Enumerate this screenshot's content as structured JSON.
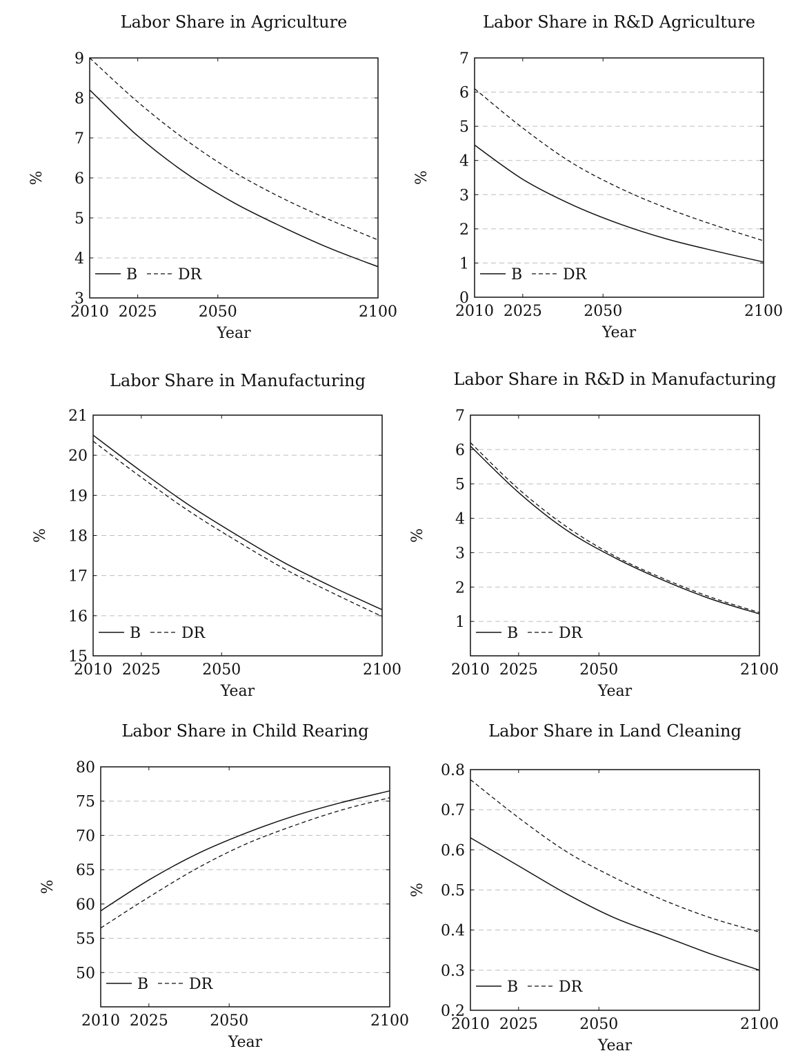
{
  "chart_data": [
    {
      "type": "line",
      "title": "Labor Share in Agriculture",
      "xlabel": "Year",
      "ylabel": "%",
      "xlim": [
        2010,
        2100
      ],
      "ylim": [
        3,
        9
      ],
      "xticks": [
        2010,
        2025,
        2050,
        2100
      ],
      "yticks": [
        3,
        4,
        5,
        6,
        7,
        8,
        9
      ],
      "grid": true,
      "legend_position": "bottom-left",
      "x": [
        2010,
        2025,
        2040,
        2055,
        2070,
        2085,
        2100
      ],
      "series": [
        {
          "name": "B",
          "style": "solid",
          "values": [
            8.2,
            7.05,
            6.12,
            5.38,
            4.78,
            4.24,
            3.78
          ]
        },
        {
          "name": "DR",
          "style": "dashed",
          "values": [
            9.0,
            7.9,
            6.95,
            6.15,
            5.5,
            4.95,
            4.45
          ]
        }
      ]
    },
    {
      "type": "line",
      "title": "Labor Share in R&D Agriculture",
      "xlabel": "Year",
      "ylabel": "%",
      "xlim": [
        2010,
        2100
      ],
      "ylim": [
        0,
        7
      ],
      "xticks": [
        2010,
        2025,
        2050,
        2100
      ],
      "yticks": [
        0,
        1,
        2,
        3,
        4,
        5,
        6,
        7
      ],
      "grid": true,
      "legend_position": "bottom-left",
      "x": [
        2010,
        2025,
        2040,
        2055,
        2070,
        2085,
        2100
      ],
      "series": [
        {
          "name": "B",
          "style": "solid",
          "values": [
            4.45,
            3.45,
            2.72,
            2.15,
            1.7,
            1.35,
            1.03
          ]
        },
        {
          "name": "DR",
          "style": "dashed",
          "values": [
            6.1,
            4.95,
            3.95,
            3.2,
            2.6,
            2.1,
            1.65
          ]
        }
      ]
    },
    {
      "type": "line",
      "title": "Labor Share in Manufacturing",
      "xlabel": "Year",
      "ylabel": "%",
      "xlim": [
        2010,
        2100
      ],
      "ylim": [
        15,
        21
      ],
      "xticks": [
        2010,
        2025,
        2050,
        2100
      ],
      "yticks": [
        15,
        16,
        17,
        18,
        19,
        20,
        21
      ],
      "grid": true,
      "legend_position": "bottom-left",
      "x": [
        2010,
        2025,
        2040,
        2055,
        2070,
        2085,
        2100
      ],
      "series": [
        {
          "name": "B",
          "style": "solid",
          "values": [
            20.5,
            19.6,
            18.75,
            18.0,
            17.3,
            16.7,
            16.15
          ]
        },
        {
          "name": "DR",
          "style": "dashed",
          "values": [
            20.35,
            19.45,
            18.6,
            17.85,
            17.15,
            16.55,
            15.98
          ]
        }
      ]
    },
    {
      "type": "line",
      "title": "Labor Share in R&D in Manufacturing",
      "xlabel": "Year",
      "ylabel": "%",
      "xlim": [
        2010,
        2100
      ],
      "ylim": [
        0,
        7
      ],
      "xticks": [
        2010,
        2025,
        2050,
        2100
      ],
      "yticks": [
        1,
        2,
        3,
        4,
        5,
        6,
        7
      ],
      "grid": true,
      "legend_position": "bottom-left",
      "x": [
        2010,
        2025,
        2040,
        2055,
        2070,
        2085,
        2100
      ],
      "series": [
        {
          "name": "B",
          "style": "solid",
          "values": [
            6.1,
            4.75,
            3.65,
            2.85,
            2.2,
            1.65,
            1.22
          ]
        },
        {
          "name": "DR",
          "style": "dashed",
          "values": [
            6.2,
            4.85,
            3.75,
            2.9,
            2.25,
            1.7,
            1.26
          ]
        }
      ]
    },
    {
      "type": "line",
      "title": "Labor Share in Child Rearing",
      "xlabel": "Year",
      "ylabel": "%",
      "xlim": [
        2010,
        2100
      ],
      "ylim": [
        45,
        80
      ],
      "xticks": [
        2010,
        2025,
        2050,
        2100
      ],
      "yticks": [
        50,
        55,
        60,
        65,
        70,
        75,
        80
      ],
      "grid": true,
      "legend_position": "bottom-left",
      "x": [
        2010,
        2025,
        2040,
        2055,
        2070,
        2085,
        2100
      ],
      "series": [
        {
          "name": "B",
          "style": "solid",
          "values": [
            59.0,
            63.5,
            67.3,
            70.3,
            72.8,
            74.8,
            76.5
          ]
        },
        {
          "name": "DR",
          "style": "dashed",
          "values": [
            56.5,
            61.0,
            65.2,
            68.7,
            71.4,
            73.7,
            75.5
          ]
        }
      ]
    },
    {
      "type": "line",
      "title": "Labor Share in Land Cleaning",
      "xlabel": "Year",
      "ylabel": "%",
      "xlim": [
        2010,
        2100
      ],
      "ylim": [
        0.2,
        0.8
      ],
      "xticks": [
        2010,
        2025,
        2050,
        2100
      ],
      "yticks": [
        0.2,
        0.3,
        0.4,
        0.5,
        0.6,
        0.7,
        0.8
      ],
      "grid": true,
      "legend_position": "bottom-left",
      "x": [
        2010,
        2025,
        2040,
        2055,
        2070,
        2085,
        2100
      ],
      "series": [
        {
          "name": "B",
          "style": "solid",
          "values": [
            0.63,
            0.56,
            0.49,
            0.43,
            0.385,
            0.34,
            0.3
          ]
        },
        {
          "name": "DR",
          "style": "dashed",
          "values": [
            0.775,
            0.68,
            0.595,
            0.53,
            0.475,
            0.43,
            0.395
          ]
        }
      ]
    }
  ]
}
